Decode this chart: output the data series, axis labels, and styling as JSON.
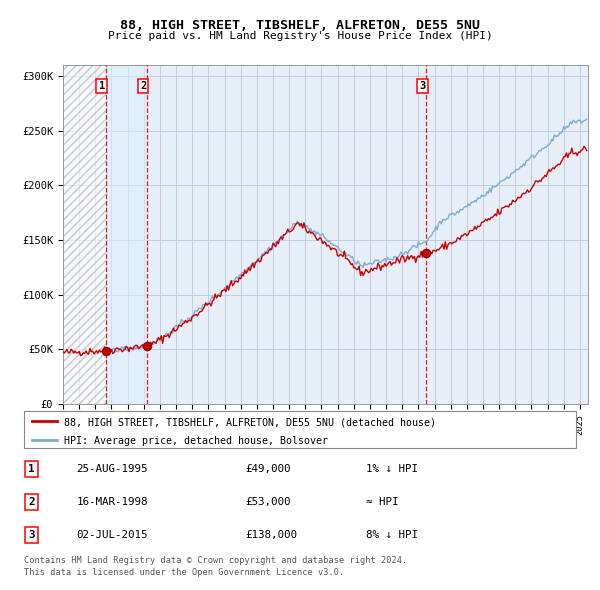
{
  "title": "88, HIGH STREET, TIBSHELF, ALFRETON, DE55 5NU",
  "subtitle": "Price paid vs. HM Land Registry's House Price Index (HPI)",
  "ylabel_ticks": [
    "£0",
    "£50K",
    "£100K",
    "£150K",
    "£200K",
    "£250K",
    "£300K"
  ],
  "ytick_vals": [
    0,
    50000,
    100000,
    150000,
    200000,
    250000,
    300000
  ],
  "ylim": [
    0,
    310000
  ],
  "xlim_start": 1993.0,
  "xlim_end": 2025.5,
  "xticks": [
    1993,
    1994,
    1995,
    1996,
    1997,
    1998,
    1999,
    2000,
    2001,
    2002,
    2003,
    2004,
    2005,
    2006,
    2007,
    2008,
    2009,
    2010,
    2011,
    2012,
    2013,
    2014,
    2015,
    2016,
    2017,
    2018,
    2019,
    2020,
    2021,
    2022,
    2023,
    2024,
    2025
  ],
  "sales": [
    {
      "label": "1",
      "date_year": 1995.65,
      "price": 49000,
      "vline_x": 1995.65
    },
    {
      "label": "2",
      "date_year": 1998.21,
      "price": 53000,
      "vline_x": 1998.21
    },
    {
      "label": "3",
      "date_year": 2015.5,
      "price": 138000,
      "vline_x": 2015.5
    }
  ],
  "table_rows": [
    {
      "num": "1",
      "date": "25-AUG-1995",
      "price": "£49,000",
      "hpi_note": "1% ↓ HPI"
    },
    {
      "num": "2",
      "date": "16-MAR-1998",
      "price": "£53,000",
      "hpi_note": "≈ HPI"
    },
    {
      "num": "3",
      "date": "02-JUL-2015",
      "price": "£138,000",
      "hpi_note": "8% ↓ HPI"
    }
  ],
  "legend_line1": "88, HIGH STREET, TIBSHELF, ALFRETON, DE55 5NU (detached house)",
  "legend_line2": "HPI: Average price, detached house, Bolsover",
  "footer1": "Contains HM Land Registry data © Crown copyright and database right 2024.",
  "footer2": "This data is licensed under the Open Government Licence v3.0.",
  "hatch_region_end": 1995.65,
  "blue_region_start": 1995.65,
  "blue_region_end": 1998.21,
  "red_line_color": "#cc0000",
  "blue_line_color": "#7aaed6",
  "dot_color": "#cc0000",
  "blue_bg_color": "#ddeeff",
  "grid_color": "#b8c8dc",
  "background_color": "#e8eef8"
}
